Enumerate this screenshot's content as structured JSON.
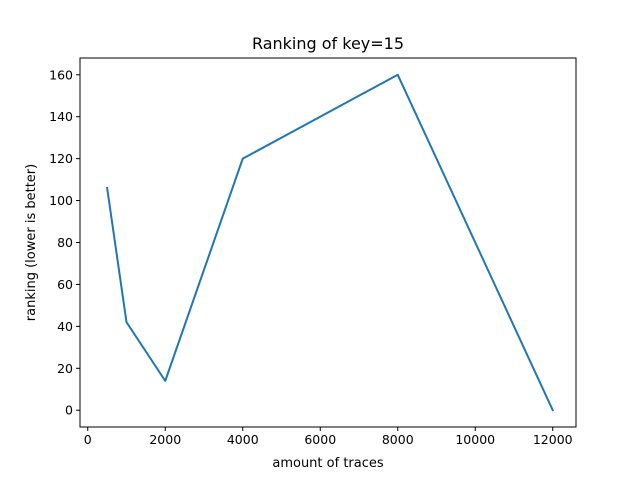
{
  "chart_data": {
    "type": "line",
    "title": "Ranking of key=15",
    "xlabel": "amount of traces",
    "ylabel": "ranking (lower is better)",
    "xlim": [
      -200,
      12600
    ],
    "ylim": [
      -8,
      168
    ],
    "x_ticks": [
      0,
      2000,
      4000,
      6000,
      8000,
      10000,
      12000
    ],
    "y_ticks": [
      0,
      20,
      40,
      60,
      80,
      100,
      120,
      140,
      160
    ],
    "grid": false,
    "series": [
      {
        "color": "#1f77b4",
        "x": [
          500,
          1000,
          2000,
          4000,
          8000,
          12000
        ],
        "y": [
          106,
          42,
          14,
          120,
          160,
          0
        ]
      }
    ]
  }
}
